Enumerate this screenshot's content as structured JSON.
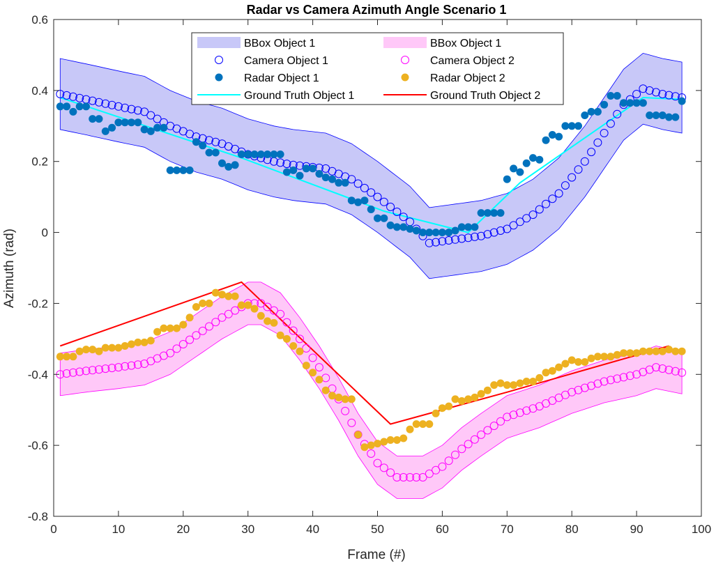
{
  "chart_data": {
    "type": "line",
    "title": "Radar vs Camera Azimuth Angle Scenario 1",
    "xlabel": "Frame (#)",
    "ylabel": "Azimuth (rad)",
    "xlim": [
      0,
      100
    ],
    "ylim": [
      -0.8,
      0.6
    ],
    "xticks": [
      0,
      10,
      20,
      30,
      40,
      50,
      60,
      70,
      80,
      90,
      100
    ],
    "yticks": [
      -0.8,
      -0.6,
      -0.4,
      -0.2,
      0,
      0.2,
      0.4,
      0.6
    ],
    "grid": false,
    "legend_placement": "top-center",
    "legend": [
      {
        "label": "BBox Object 1",
        "kind": "patch",
        "color": "#c8c8f8"
      },
      {
        "label": "BBox Object 1",
        "kind": "patch",
        "color": "#ffc8f8"
      },
      {
        "label": "Camera Object 1",
        "kind": "open-circle",
        "color": "#0000ff"
      },
      {
        "label": "Camera Object 2",
        "kind": "open-circle",
        "color": "#ff00ff"
      },
      {
        "label": "Radar Object 1",
        "kind": "filled-circle",
        "color": "#0072bd"
      },
      {
        "label": "Radar Object 2",
        "kind": "filled-circle",
        "color": "#edb120"
      },
      {
        "label": "Ground Truth Object 1",
        "kind": "line",
        "color": "#00ffff"
      },
      {
        "label": "Ground Truth Object 2",
        "kind": "line",
        "color": "#ff0000"
      }
    ],
    "series": [
      {
        "role": "camera1",
        "color": "#0000ff",
        "style": "open-circle",
        "knots": [
          [
            1,
            0.39
          ],
          [
            5,
            0.375
          ],
          [
            10,
            0.355
          ],
          [
            14,
            0.34
          ],
          [
            18,
            0.3
          ],
          [
            22,
            0.27
          ],
          [
            26,
            0.25
          ],
          [
            30,
            0.22
          ],
          [
            34,
            0.2
          ],
          [
            37,
            0.19
          ],
          [
            42,
            0.18
          ],
          [
            46,
            0.15
          ],
          [
            50,
            0.1
          ],
          [
            55,
            0.03
          ],
          [
            58,
            -0.03
          ],
          [
            62,
            -0.02
          ],
          [
            66,
            -0.01
          ],
          [
            70,
            0.01
          ],
          [
            74,
            0.05
          ],
          [
            78,
            0.11
          ],
          [
            82,
            0.2
          ],
          [
            85,
            0.28
          ],
          [
            88,
            0.36
          ],
          [
            91,
            0.405
          ],
          [
            94,
            0.39
          ],
          [
            97,
            0.38
          ]
        ]
      },
      {
        "role": "bbox1",
        "color": "#c8c8f8",
        "style": "band",
        "half_width": 0.1,
        "follows": "camera1"
      },
      {
        "role": "camera2",
        "color": "#ff00ff",
        "style": "open-circle",
        "knots": [
          [
            1,
            -0.4
          ],
          [
            5,
            -0.39
          ],
          [
            10,
            -0.38
          ],
          [
            14,
            -0.37
          ],
          [
            18,
            -0.34
          ],
          [
            22,
            -0.29
          ],
          [
            26,
            -0.24
          ],
          [
            30,
            -0.2
          ],
          [
            32,
            -0.2
          ],
          [
            35,
            -0.23
          ],
          [
            38,
            -0.3
          ],
          [
            41,
            -0.38
          ],
          [
            44,
            -0.47
          ],
          [
            47,
            -0.57
          ],
          [
            50,
            -0.65
          ],
          [
            53,
            -0.69
          ],
          [
            57,
            -0.69
          ],
          [
            60,
            -0.66
          ],
          [
            63,
            -0.61
          ],
          [
            66,
            -0.57
          ],
          [
            70,
            -0.52
          ],
          [
            75,
            -0.49
          ],
          [
            80,
            -0.45
          ],
          [
            85,
            -0.42
          ],
          [
            90,
            -0.4
          ],
          [
            93,
            -0.38
          ],
          [
            97,
            -0.395
          ]
        ]
      },
      {
        "role": "bbox2",
        "color": "#ffc8f8",
        "style": "band",
        "half_width": 0.06,
        "follows": "camera2"
      },
      {
        "role": "radar1",
        "color": "#0072bd",
        "style": "filled-circle",
        "points": [
          [
            1,
            0.355
          ],
          [
            2,
            0.355
          ],
          [
            3,
            0.34
          ],
          [
            4,
            0.355
          ],
          [
            5,
            0.355
          ],
          [
            6,
            0.32
          ],
          [
            7,
            0.32
          ],
          [
            8,
            0.285
          ],
          [
            9,
            0.295
          ],
          [
            10,
            0.31
          ],
          [
            11,
            0.31
          ],
          [
            12,
            0.31
          ],
          [
            13,
            0.31
          ],
          [
            14,
            0.29
          ],
          [
            15,
            0.285
          ],
          [
            16,
            0.295
          ],
          [
            17,
            0.295
          ],
          [
            18,
            0.175
          ],
          [
            19,
            0.175
          ],
          [
            20,
            0.175
          ],
          [
            21,
            0.175
          ],
          [
            22,
            0.255
          ],
          [
            23,
            0.245
          ],
          [
            24,
            0.225
          ],
          [
            25,
            0.225
          ],
          [
            26,
            0.195
          ],
          [
            27,
            0.185
          ],
          [
            28,
            0.19
          ],
          [
            29,
            0.22
          ],
          [
            30,
            0.22
          ],
          [
            31,
            0.22
          ],
          [
            32,
            0.22
          ],
          [
            33,
            0.22
          ],
          [
            34,
            0.22
          ],
          [
            35,
            0.22
          ],
          [
            36,
            0.17
          ],
          [
            37,
            0.175
          ],
          [
            38,
            0.16
          ],
          [
            39,
            0.18
          ],
          [
            40,
            0.18
          ],
          [
            41,
            0.165
          ],
          [
            42,
            0.155
          ],
          [
            43,
            0.15
          ],
          [
            44,
            0.14
          ],
          [
            45,
            0.14
          ],
          [
            46,
            0.09
          ],
          [
            47,
            0.085
          ],
          [
            48,
            0.09
          ],
          [
            49,
            0.065
          ],
          [
            50,
            0.04
          ],
          [
            51,
            0.04
          ],
          [
            52,
            0.02
          ],
          [
            53,
            0.015
          ],
          [
            54,
            0.015
          ],
          [
            55,
            0.01
          ],
          [
            56,
            0.005
          ],
          [
            57,
            0.0
          ],
          [
            58,
            0.0
          ],
          [
            59,
            0.0
          ],
          [
            60,
            0.0
          ],
          [
            61,
            0.0
          ],
          [
            62,
            0.005
          ],
          [
            63,
            0.015
          ],
          [
            64,
            0.015
          ],
          [
            65,
            0.015
          ],
          [
            66,
            0.055
          ],
          [
            67,
            0.055
          ],
          [
            68,
            0.055
          ],
          [
            69,
            0.055
          ],
          [
            70,
            0.15
          ],
          [
            71,
            0.18
          ],
          [
            72,
            0.17
          ],
          [
            73,
            0.195
          ],
          [
            74,
            0.21
          ],
          [
            75,
            0.205
          ],
          [
            76,
            0.26
          ],
          [
            77,
            0.275
          ],
          [
            78,
            0.27
          ],
          [
            79,
            0.3
          ],
          [
            80,
            0.3
          ],
          [
            81,
            0.3
          ],
          [
            82,
            0.33
          ],
          [
            83,
            0.34
          ],
          [
            84,
            0.34
          ],
          [
            85,
            0.36
          ],
          [
            86,
            0.385
          ],
          [
            87,
            0.385
          ],
          [
            88,
            0.365
          ],
          [
            89,
            0.365
          ],
          [
            90,
            0.365
          ],
          [
            91,
            0.365
          ],
          [
            92,
            0.33
          ],
          [
            93,
            0.33
          ],
          [
            94,
            0.33
          ],
          [
            95,
            0.325
          ],
          [
            96,
            0.325
          ],
          [
            97,
            0.37
          ]
        ]
      },
      {
        "role": "radar2",
        "color": "#edb120",
        "style": "filled-circle",
        "points": [
          [
            1,
            -0.35
          ],
          [
            2,
            -0.35
          ],
          [
            3,
            -0.35
          ],
          [
            4,
            -0.335
          ],
          [
            5,
            -0.33
          ],
          [
            6,
            -0.33
          ],
          [
            7,
            -0.335
          ],
          [
            8,
            -0.325
          ],
          [
            9,
            -0.325
          ],
          [
            10,
            -0.325
          ],
          [
            11,
            -0.32
          ],
          [
            12,
            -0.315
          ],
          [
            13,
            -0.31
          ],
          [
            14,
            -0.31
          ],
          [
            15,
            -0.305
          ],
          [
            16,
            -0.28
          ],
          [
            17,
            -0.27
          ],
          [
            18,
            -0.27
          ],
          [
            19,
            -0.27
          ],
          [
            20,
            -0.26
          ],
          [
            21,
            -0.24
          ],
          [
            22,
            -0.21
          ],
          [
            23,
            -0.2
          ],
          [
            24,
            -0.2
          ],
          [
            25,
            -0.17
          ],
          [
            26,
            -0.175
          ],
          [
            27,
            -0.18
          ],
          [
            28,
            -0.18
          ],
          [
            29,
            -0.205
          ],
          [
            30,
            -0.205
          ],
          [
            31,
            -0.215
          ],
          [
            32,
            -0.235
          ],
          [
            33,
            -0.25
          ],
          [
            34,
            -0.255
          ],
          [
            35,
            -0.29
          ],
          [
            36,
            -0.3
          ],
          [
            37,
            -0.32
          ],
          [
            38,
            -0.335
          ],
          [
            39,
            -0.375
          ],
          [
            40,
            -0.395
          ],
          [
            41,
            -0.415
          ],
          [
            42,
            -0.445
          ],
          [
            43,
            -0.46
          ],
          [
            44,
            -0.465
          ],
          [
            45,
            -0.47
          ],
          [
            46,
            -0.47
          ],
          [
            47,
            -0.57
          ],
          [
            48,
            -0.605
          ],
          [
            49,
            -0.6
          ],
          [
            50,
            -0.595
          ],
          [
            51,
            -0.59
          ],
          [
            52,
            -0.585
          ],
          [
            53,
            -0.585
          ],
          [
            54,
            -0.58
          ],
          [
            55,
            -0.555
          ],
          [
            56,
            -0.54
          ],
          [
            57,
            -0.54
          ],
          [
            58,
            -0.54
          ],
          [
            59,
            -0.51
          ],
          [
            60,
            -0.495
          ],
          [
            61,
            -0.49
          ],
          [
            62,
            -0.47
          ],
          [
            63,
            -0.475
          ],
          [
            64,
            -0.47
          ],
          [
            65,
            -0.465
          ],
          [
            66,
            -0.455
          ],
          [
            67,
            -0.445
          ],
          [
            68,
            -0.43
          ],
          [
            69,
            -0.425
          ],
          [
            70,
            -0.43
          ],
          [
            71,
            -0.43
          ],
          [
            72,
            -0.425
          ],
          [
            73,
            -0.42
          ],
          [
            74,
            -0.42
          ],
          [
            75,
            -0.41
          ],
          [
            76,
            -0.395
          ],
          [
            77,
            -0.39
          ],
          [
            78,
            -0.38
          ],
          [
            79,
            -0.37
          ],
          [
            80,
            -0.36
          ],
          [
            81,
            -0.365
          ],
          [
            82,
            -0.365
          ],
          [
            83,
            -0.355
          ],
          [
            84,
            -0.35
          ],
          [
            85,
            -0.35
          ],
          [
            86,
            -0.35
          ],
          [
            87,
            -0.345
          ],
          [
            88,
            -0.34
          ],
          [
            89,
            -0.34
          ],
          [
            90,
            -0.34
          ],
          [
            91,
            -0.335
          ],
          [
            92,
            -0.335
          ],
          [
            93,
            -0.335
          ],
          [
            94,
            -0.335
          ],
          [
            95,
            -0.33
          ],
          [
            96,
            -0.335
          ],
          [
            97,
            -0.335
          ]
        ]
      },
      {
        "role": "truth1",
        "color": "#00ffff",
        "style": "line",
        "points": [
          [
            1,
            0.38
          ],
          [
            29,
            0.21
          ],
          [
            51,
            0.06
          ],
          [
            64,
            0.0
          ],
          [
            72,
            0.14
          ],
          [
            91,
            0.38
          ],
          [
            97,
            0.375
          ]
        ]
      },
      {
        "role": "truth2",
        "color": "#ff0000",
        "style": "line",
        "points": [
          [
            1,
            -0.32
          ],
          [
            29,
            -0.14
          ],
          [
            52,
            -0.54
          ],
          [
            70,
            -0.45
          ],
          [
            95,
            -0.32
          ]
        ]
      }
    ]
  }
}
